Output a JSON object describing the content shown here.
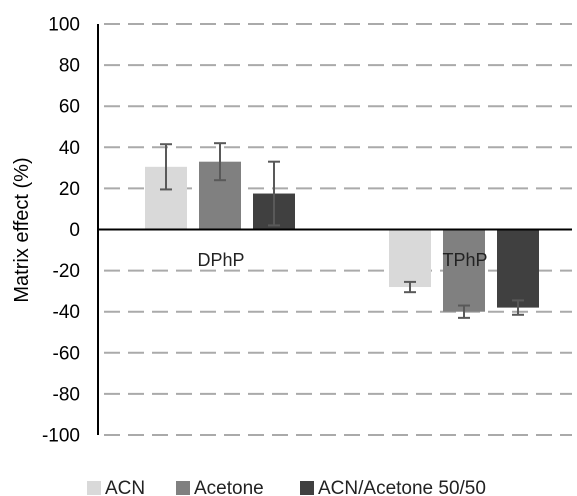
{
  "chart_data": {
    "type": "bar",
    "title": "",
    "xlabel": "",
    "ylabel": "Matrix effect (%)",
    "ylim": [
      -100,
      100
    ],
    "yticks": [
      100,
      80,
      60,
      40,
      20,
      0,
      -20,
      -40,
      -60,
      -80,
      -100
    ],
    "grid": true,
    "legend_position": "bottom",
    "categories": [
      "DPhP",
      "TPhP"
    ],
    "series": [
      {
        "name": "ACN",
        "color": "#d9d9d9",
        "values": [
          30.5,
          -28
        ],
        "error": [
          11,
          2.5
        ]
      },
      {
        "name": "Acetone",
        "color": "#808080",
        "values": [
          33,
          -40
        ],
        "error": [
          9,
          3
        ]
      },
      {
        "name": "ACN/Acetone 50/50",
        "color": "#404040",
        "values": [
          17.5,
          -38
        ],
        "error": [
          15.5,
          3.5
        ]
      }
    ]
  }
}
